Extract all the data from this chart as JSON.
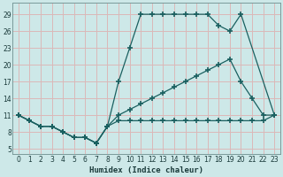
{
  "title": "",
  "xlabel": "Humidex (Indice chaleur)",
  "xlim": [
    -0.5,
    23.5
  ],
  "ylim": [
    4,
    31
  ],
  "yticks": [
    5,
    8,
    11,
    14,
    17,
    20,
    23,
    26,
    29
  ],
  "xticks": [
    0,
    1,
    2,
    3,
    4,
    5,
    6,
    7,
    8,
    9,
    10,
    11,
    12,
    13,
    14,
    15,
    16,
    17,
    18,
    19,
    20,
    21,
    22,
    23
  ],
  "bg_color": "#cde8e8",
  "grid_color": "#dbb8b8",
  "line_color": "#1a6060",
  "curve1_x": [
    0,
    1,
    2,
    3,
    4,
    5,
    6,
    7,
    8,
    9,
    10,
    11,
    12,
    13,
    14,
    15,
    16,
    17,
    18,
    19,
    20,
    23
  ],
  "curve1_y": [
    11,
    10,
    9,
    9,
    8,
    7,
    7,
    6,
    9,
    17,
    23,
    29,
    29,
    29,
    29,
    29,
    29,
    29,
    27,
    26,
    29,
    11
  ],
  "curve2_x": [
    0,
    1,
    2,
    3,
    4,
    5,
    6,
    7,
    8,
    9,
    10,
    11,
    12,
    13,
    14,
    15,
    16,
    17,
    18,
    19,
    20,
    21,
    22,
    23
  ],
  "curve2_y": [
    11,
    10,
    9,
    9,
    8,
    7,
    7,
    6,
    9,
    11,
    12,
    13,
    14,
    15,
    16,
    17,
    18,
    19,
    20,
    21,
    17,
    14,
    11,
    11
  ],
  "curve3_x": [
    0,
    1,
    2,
    3,
    4,
    5,
    6,
    7,
    8,
    9,
    10,
    11,
    12,
    13,
    14,
    15,
    16,
    17,
    18,
    19,
    20,
    21,
    22,
    23
  ],
  "curve3_y": [
    11,
    10,
    9,
    9,
    8,
    7,
    7,
    6,
    9,
    10,
    10,
    10,
    10,
    10,
    10,
    10,
    10,
    10,
    10,
    10,
    10,
    10,
    10,
    11
  ]
}
